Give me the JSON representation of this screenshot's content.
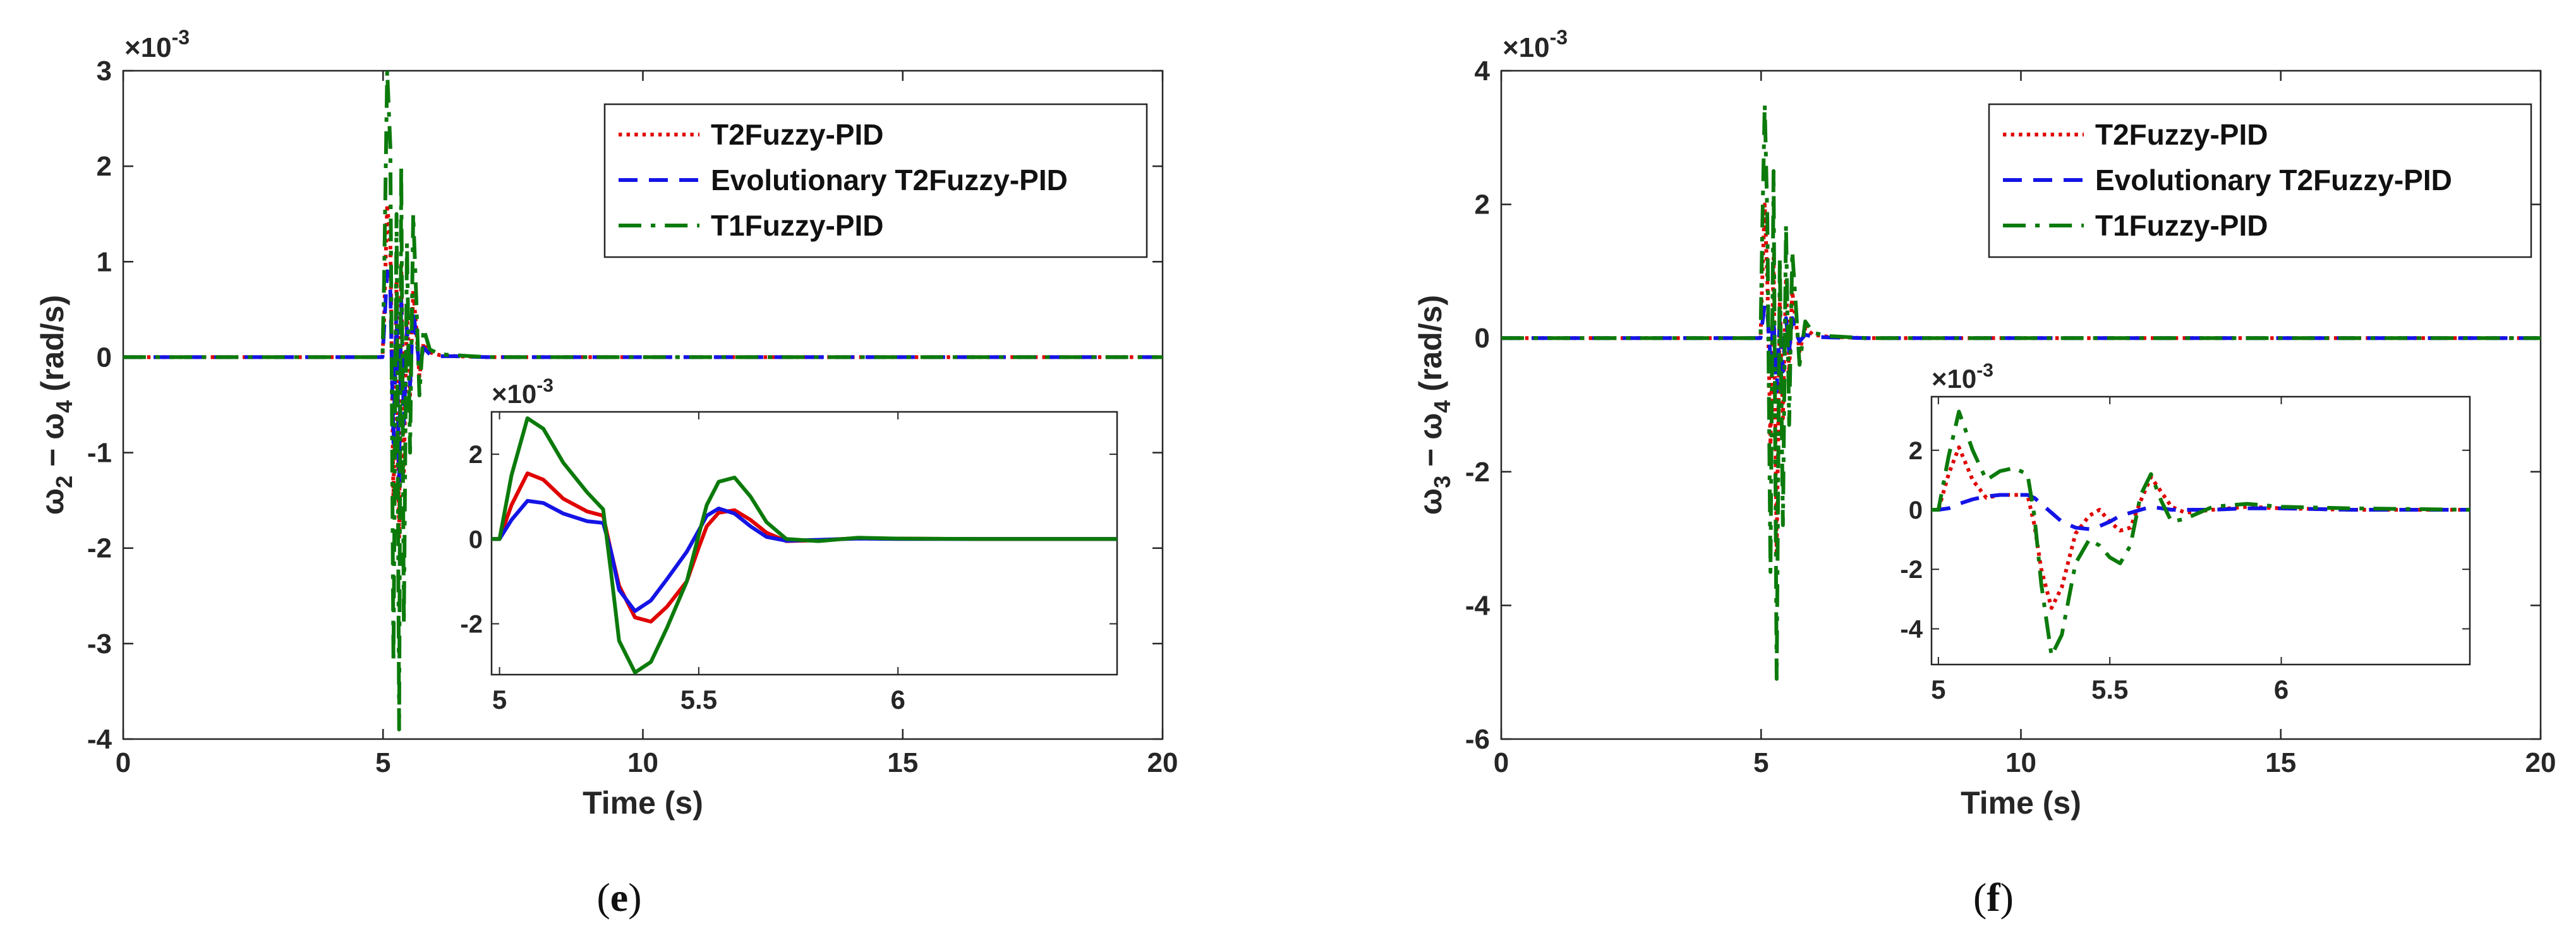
{
  "chart_data": [
    {
      "type": "line",
      "caption_open": "(",
      "caption_letter": "e",
      "caption_close": ")",
      "title": "",
      "xlabel": "Time (s)",
      "ylabel_parts": [
        "ω",
        "2",
        " − ω",
        "4",
        " (rad/s)"
      ],
      "y_multiplier": "×10",
      "y_multiplier_exp": "-3",
      "xlim": [
        0,
        20
      ],
      "ylim": [
        -4,
        3
      ],
      "xticks": [
        0,
        5,
        10,
        15,
        20
      ],
      "yticks": [
        -4,
        -3,
        -2,
        -1,
        0,
        1,
        2,
        3
      ],
      "grid": false,
      "legend_position": "top-right",
      "legend": [
        "T2Fuzzy-PID",
        "Evolutionary T2Fuzzy-PID",
        "T1Fuzzy-PID"
      ],
      "series": [
        {
          "name": "T2Fuzzy-PID",
          "color": "#e00000",
          "style": "dotted",
          "x": [
            0,
            4.99,
            5.02,
            5.08,
            5.14,
            5.2,
            5.26,
            5.31,
            5.35,
            5.4,
            5.46,
            5.52,
            5.58,
            5.64,
            5.7,
            5.78,
            5.9,
            6.1,
            6.4,
            7,
            20
          ],
          "y": [
            0,
            0,
            0.4,
            1.6,
            1.2,
            -1.5,
            0.8,
            -1.9,
            1.0,
            -1.2,
            0.5,
            -0.4,
            0.7,
            0.3,
            -0.2,
            0.15,
            0.05,
            0.02,
            0.01,
            0,
            0
          ]
        },
        {
          "name": "Evolutionary T2Fuzzy-PID",
          "color": "#1414e6",
          "style": "dashed",
          "x": [
            0,
            4.99,
            5.02,
            5.08,
            5.14,
            5.2,
            5.26,
            5.31,
            5.35,
            5.4,
            5.46,
            5.52,
            5.58,
            5.64,
            5.7,
            5.78,
            5.9,
            6.1,
            6.4,
            7,
            20
          ],
          "y": [
            0,
            0,
            0.3,
            0.9,
            0.7,
            -0.9,
            0.5,
            -1.3,
            0.6,
            -0.7,
            0.3,
            -0.3,
            0.5,
            0.2,
            -0.1,
            0.1,
            0.03,
            0.01,
            0.01,
            0,
            0
          ]
        },
        {
          "name": "T1Fuzzy-PID",
          "color": "#0b7a0b",
          "style": "dashdot",
          "x": [
            0,
            4.99,
            5.02,
            5.08,
            5.14,
            5.2,
            5.26,
            5.31,
            5.35,
            5.4,
            5.46,
            5.52,
            5.58,
            5.64,
            5.7,
            5.78,
            5.9,
            6.1,
            6.4,
            7,
            20
          ],
          "y": [
            0,
            0,
            0.8,
            3.0,
            2.2,
            -3.2,
            1.5,
            -3.9,
            2.0,
            -2.8,
            1.2,
            -1.0,
            1.5,
            0.6,
            -0.4,
            0.3,
            0.08,
            0.03,
            0.02,
            0,
            0
          ]
        }
      ],
      "inset": {
        "xlim": [
          4.98,
          6.55
        ],
        "ylim": [
          -3.2,
          3.0
        ],
        "xticks": [
          5,
          5.5,
          6
        ],
        "yticks": [
          -2,
          0,
          2
        ],
        "y_multiplier": "×10",
        "y_multiplier_exp": "-3",
        "series": [
          {
            "name": "T2Fuzzy-PID",
            "color": "#e00000",
            "style": "solid",
            "x": [
              4.98,
              5.0,
              5.03,
              5.07,
              5.11,
              5.16,
              5.22,
              5.26,
              5.28,
              5.3,
              5.34,
              5.38,
              5.42,
              5.47,
              5.5,
              5.52,
              5.55,
              5.59,
              5.63,
              5.67,
              5.72,
              5.8,
              5.9,
              6.0,
              6.2,
              6.55
            ],
            "y": [
              0,
              0,
              0.8,
              1.55,
              1.4,
              0.95,
              0.65,
              0.55,
              -0.3,
              -1.1,
              -1.85,
              -1.95,
              -1.6,
              -1.0,
              -0.2,
              0.3,
              0.62,
              0.68,
              0.45,
              0.15,
              -0.05,
              -0.03,
              0.02,
              0.01,
              0,
              0
            ]
          },
          {
            "name": "Evolutionary T2Fuzzy-PID",
            "color": "#1414e6",
            "style": "solid",
            "x": [
              4.98,
              5.0,
              5.03,
              5.07,
              5.11,
              5.16,
              5.22,
              5.26,
              5.28,
              5.3,
              5.34,
              5.38,
              5.42,
              5.47,
              5.5,
              5.52,
              5.55,
              5.59,
              5.63,
              5.67,
              5.72,
              5.8,
              5.9,
              6.0,
              6.2,
              6.55
            ],
            "y": [
              0,
              0,
              0.45,
              0.9,
              0.85,
              0.6,
              0.42,
              0.38,
              -0.3,
              -1.2,
              -1.7,
              -1.45,
              -0.95,
              -0.3,
              0.2,
              0.55,
              0.72,
              0.6,
              0.3,
              0.05,
              -0.04,
              -0.02,
              0.01,
              0,
              0,
              0
            ]
          },
          {
            "name": "T1Fuzzy-PID",
            "color": "#0b7a0b",
            "style": "solid",
            "x": [
              4.98,
              5.0,
              5.03,
              5.07,
              5.11,
              5.16,
              5.22,
              5.26,
              5.28,
              5.3,
              5.34,
              5.38,
              5.42,
              5.47,
              5.5,
              5.52,
              5.55,
              5.59,
              5.63,
              5.67,
              5.72,
              5.8,
              5.9,
              6.0,
              6.2,
              6.55
            ],
            "y": [
              0,
              0,
              1.5,
              2.85,
              2.6,
              1.8,
              1.1,
              0.7,
              -0.8,
              -2.4,
              -3.15,
              -2.9,
              -2.1,
              -1.0,
              0.1,
              0.8,
              1.35,
              1.45,
              1.0,
              0.4,
              0.0,
              -0.05,
              0.03,
              0.01,
              0,
              0
            ]
          }
        ]
      }
    },
    {
      "type": "line",
      "caption_open": "(",
      "caption_letter": "f",
      "caption_close": ")",
      "title": "",
      "xlabel": "Time (s)",
      "ylabel_parts": [
        "ω",
        "3",
        " − ω",
        "4",
        " (rad/s)"
      ],
      "y_multiplier": "×10",
      "y_multiplier_exp": "-3",
      "xlim": [
        0,
        20
      ],
      "ylim": [
        -6,
        4
      ],
      "xticks": [
        0,
        5,
        10,
        15,
        20
      ],
      "yticks": [
        -6,
        -4,
        -2,
        0,
        2,
        4
      ],
      "grid": false,
      "legend_position": "top-right",
      "legend": [
        "T2Fuzzy-PID",
        "Evolutionary T2Fuzzy-PID",
        "T1Fuzzy-PID"
      ],
      "series": [
        {
          "name": "T2Fuzzy-PID",
          "color": "#e00000",
          "style": "dotted",
          "x": [
            0,
            4.99,
            5.02,
            5.07,
            5.12,
            5.18,
            5.24,
            5.3,
            5.36,
            5.42,
            5.48,
            5.54,
            5.6,
            5.66,
            5.74,
            5.85,
            6.0,
            6.3,
            7,
            20
          ],
          "y": [
            0,
            0,
            0.8,
            2.0,
            0.9,
            -1.6,
            1.2,
            -3.2,
            0.6,
            -1.2,
            0.9,
            -0.5,
            0.7,
            0.3,
            -0.2,
            0.15,
            0.05,
            0.02,
            0,
            0
          ]
        },
        {
          "name": "Evolutionary T2Fuzzy-PID",
          "color": "#1414e6",
          "style": "dashed",
          "x": [
            0,
            4.99,
            5.02,
            5.07,
            5.12,
            5.18,
            5.24,
            5.3,
            5.36,
            5.42,
            5.48,
            5.54,
            5.6,
            5.66,
            5.74,
            5.85,
            6.0,
            6.3,
            7,
            20
          ],
          "y": [
            0,
            0,
            0.2,
            0.5,
            0.4,
            -0.3,
            0.3,
            -0.8,
            0.3,
            -0.5,
            0.3,
            -0.2,
            0.3,
            0.1,
            -0.05,
            0.05,
            0.02,
            0.01,
            0,
            0
          ]
        },
        {
          "name": "T1Fuzzy-PID",
          "color": "#0b7a0b",
          "style": "dashdot",
          "x": [
            0,
            4.99,
            5.02,
            5.07,
            5.12,
            5.18,
            5.24,
            5.3,
            5.36,
            5.42,
            5.48,
            5.54,
            5.6,
            5.66,
            5.74,
            5.85,
            6.0,
            6.3,
            7,
            20
          ],
          "y": [
            0,
            0,
            1.5,
            3.5,
            1.8,
            -3.5,
            2.5,
            -5.1,
            1.2,
            -2.8,
            1.7,
            -1.3,
            1.3,
            0.6,
            -0.4,
            0.25,
            0.08,
            0.03,
            0,
            0
          ]
        }
      ],
      "inset": {
        "xlim": [
          4.98,
          6.55
        ],
        "ylim": [
          -5.2,
          3.8
        ],
        "xticks": [
          5,
          5.5,
          6
        ],
        "yticks": [
          -4,
          -2,
          0,
          2
        ],
        "y_multiplier": "×10",
        "y_multiplier_exp": "-3",
        "series": [
          {
            "name": "T2Fuzzy-PID",
            "color": "#e00000",
            "style": "dotted",
            "x": [
              4.98,
              5.0,
              5.03,
              5.06,
              5.1,
              5.14,
              5.18,
              5.22,
              5.26,
              5.28,
              5.3,
              5.33,
              5.36,
              5.4,
              5.44,
              5.47,
              5.5,
              5.53,
              5.56,
              5.59,
              5.62,
              5.65,
              5.68,
              5.72,
              5.8,
              5.9,
              6.0,
              6.2,
              6.55
            ],
            "y": [
              0,
              0,
              1.2,
              2.1,
              1.0,
              0.4,
              0.5,
              0.5,
              0.5,
              -0.5,
              -2.0,
              -3.3,
              -2.6,
              -0.8,
              -0.2,
              0.0,
              -0.4,
              -0.7,
              -0.6,
              0.3,
              1.1,
              0.6,
              0.1,
              -0.1,
              0.0,
              0.1,
              0.05,
              0.0,
              0.0
            ]
          },
          {
            "name": "Evolutionary T2Fuzzy-PID",
            "color": "#1414e6",
            "style": "dashed",
            "x": [
              4.98,
              5.0,
              5.03,
              5.06,
              5.1,
              5.14,
              5.18,
              5.22,
              5.26,
              5.28,
              5.3,
              5.33,
              5.36,
              5.4,
              5.44,
              5.47,
              5.5,
              5.53,
              5.56,
              5.59,
              5.62,
              5.65,
              5.68,
              5.72,
              5.8,
              5.9,
              6.0,
              6.2,
              6.55
            ],
            "y": [
              0,
              0,
              0.05,
              0.2,
              0.35,
              0.45,
              0.5,
              0.5,
              0.5,
              0.4,
              0.2,
              -0.1,
              -0.4,
              -0.6,
              -0.65,
              -0.55,
              -0.4,
              -0.2,
              -0.1,
              0.0,
              0.1,
              0.05,
              0.0,
              0.0,
              0.0,
              0.05,
              0.05,
              0.0,
              0.0
            ]
          },
          {
            "name": "T1Fuzzy-PID",
            "color": "#0b7a0b",
            "style": "dashdot",
            "x": [
              4.98,
              5.0,
              5.03,
              5.06,
              5.1,
              5.14,
              5.18,
              5.22,
              5.26,
              5.28,
              5.3,
              5.33,
              5.36,
              5.4,
              5.44,
              5.47,
              5.5,
              5.53,
              5.56,
              5.59,
              5.62,
              5.65,
              5.68,
              5.72,
              5.8,
              5.9,
              6.0,
              6.2,
              6.55
            ],
            "y": [
              0,
              0,
              1.8,
              3.3,
              2.0,
              1.0,
              1.3,
              1.4,
              1.2,
              -0.2,
              -2.5,
              -4.9,
              -4.2,
              -1.8,
              -1.0,
              -1.2,
              -1.6,
              -1.8,
              -1.2,
              0.5,
              1.2,
              0.3,
              -0.4,
              -0.3,
              0.1,
              0.2,
              0.1,
              0.05,
              0.0
            ]
          }
        ]
      }
    }
  ]
}
